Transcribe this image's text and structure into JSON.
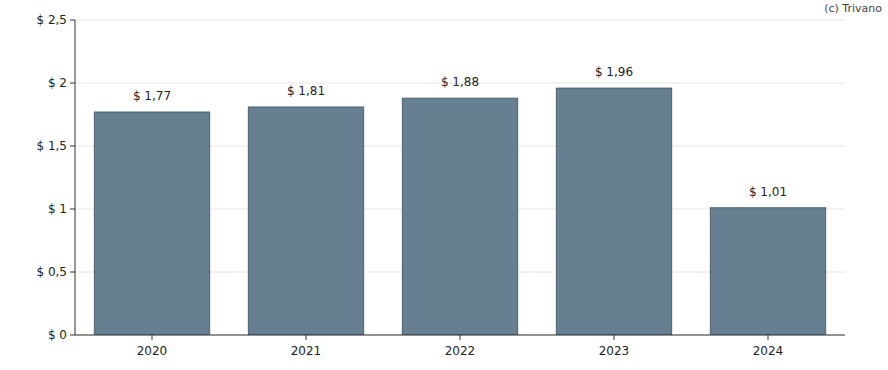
{
  "chart_data": {
    "type": "bar",
    "annotation": "(c) Trivano",
    "categories": [
      "2020",
      "2021",
      "2022",
      "2023",
      "2024"
    ],
    "values": [
      1.77,
      1.81,
      1.88,
      1.96,
      1.01
    ],
    "value_labels": [
      "$ 1,77",
      "$ 1,81",
      "$ 1,88",
      "$ 1,96",
      "$ 1,01"
    ],
    "data_labels": true,
    "color": "#667f91",
    "ylim": [
      0,
      2.5
    ],
    "yticks": [
      {
        "value": 0,
        "label": "$ 0"
      },
      {
        "value": 0.5,
        "label": "$ 0,5"
      },
      {
        "value": 1,
        "label": "$ 1"
      },
      {
        "value": 1.5,
        "label": "$ 1,5"
      },
      {
        "value": 2,
        "label": "$ 2"
      },
      {
        "value": 2.5,
        "label": "$ 2,5"
      }
    ],
    "grid": true
  }
}
